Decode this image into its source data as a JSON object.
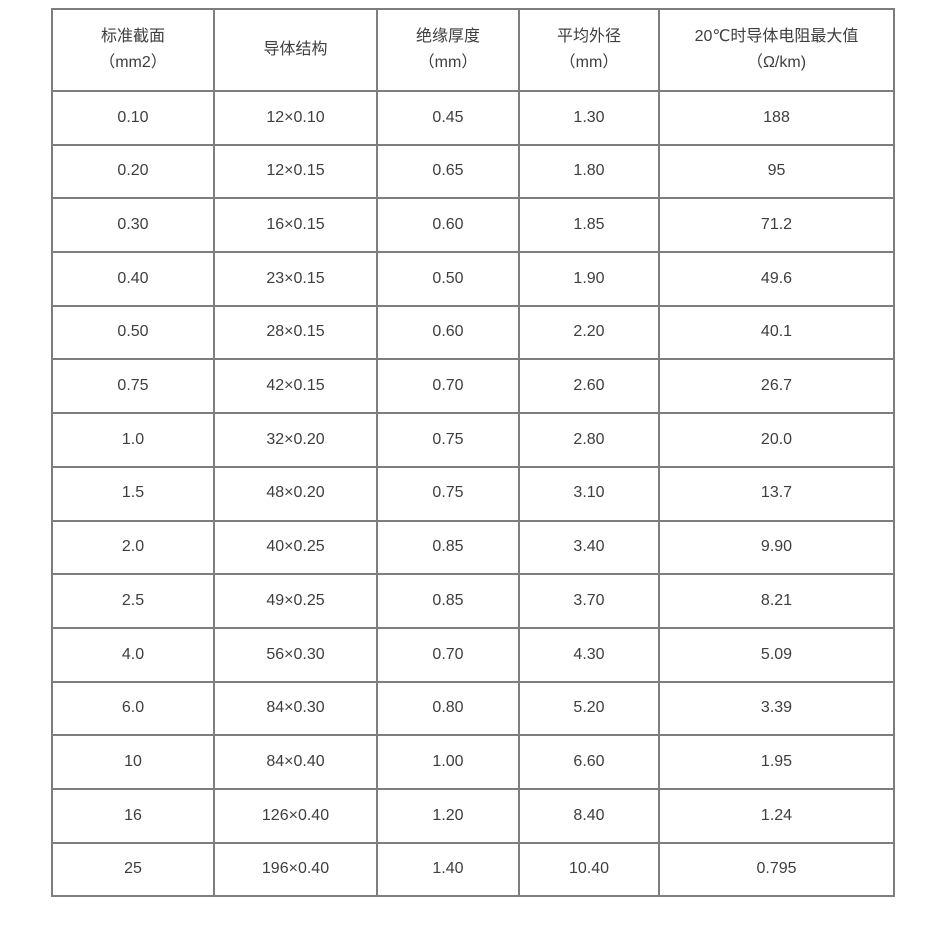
{
  "colors": {
    "page_background": "#ffffff",
    "grid_line": "#7e7e7e",
    "text": "#3e3e3e"
  },
  "table": {
    "headers": [
      "标准截面\n（mm2）",
      "导体结构",
      "绝缘厚度\n（mm）",
      "平均外径\n（mm）",
      "20℃时导体电阻最大值\n（Ω/km)"
    ],
    "rows": [
      [
        "0.10",
        "12×0.10",
        "0.45",
        "1.30",
        "188"
      ],
      [
        "0.20",
        "12×0.15",
        "0.65",
        "1.80",
        "95"
      ],
      [
        "0.30",
        "16×0.15",
        "0.60",
        "1.85",
        "71.2"
      ],
      [
        "0.40",
        "23×0.15",
        "0.50",
        "1.90",
        "49.6"
      ],
      [
        "0.50",
        "28×0.15",
        "0.60",
        "2.20",
        "40.1"
      ],
      [
        "0.75",
        "42×0.15",
        "0.70",
        "2.60",
        "26.7"
      ],
      [
        "1.0",
        "32×0.20",
        "0.75",
        "2.80",
        "20.0"
      ],
      [
        "1.5",
        "48×0.20",
        "0.75",
        "3.10",
        "13.7"
      ],
      [
        "2.0",
        "40×0.25",
        "0.85",
        "3.40",
        "9.90"
      ],
      [
        "2.5",
        "49×0.25",
        "0.85",
        "3.70",
        "8.21"
      ],
      [
        "4.0",
        "56×0.30",
        "0.70",
        "4.30",
        "5.09"
      ],
      [
        "6.0",
        "84×0.30",
        "0.80",
        "5.20",
        "3.39"
      ],
      [
        "10",
        "84×0.40",
        "1.00",
        "6.60",
        "1.95"
      ],
      [
        "16",
        "126×0.40",
        "1.20",
        "8.40",
        "1.24"
      ],
      [
        "25",
        "196×0.40",
        "1.40",
        "10.40",
        "0.795"
      ]
    ]
  }
}
